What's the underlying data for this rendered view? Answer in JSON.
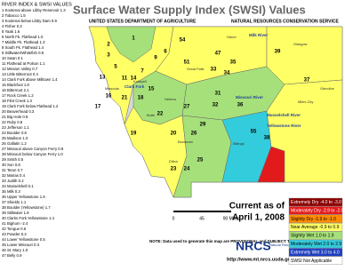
{
  "header": {
    "list_title": "RIVER INDEX & SWSI VALUES",
    "title": "Surface Water Supply Index (SWSI) Values",
    "agency_left": "UNITED STATES DEPARTMENT OF AGRICULTURE",
    "agency_right": "NATURAL RESOURCES CONSERVATION SERVICE"
  },
  "basin_list": [
    "1 Kootenai above Libby Reservoir 1.3",
    "2 Tobacco 1.5",
    "3 Kootenai below Libby Dam 0.9",
    "4 Fisher 0.3",
    "5 Yaak 1.6",
    "6 North Fk. Flathead 1.0",
    "7 Middle Fk. Flathead 1.3",
    "8 South Fk. Flathead 1.4",
    "9 Stillwater/Whitefish 0.9",
    "10 Swan 0.1",
    "11 Flathead at Polson 1.1",
    "12 Mission Valley 0.7",
    "13 Little Bitterroot 0.4",
    "14 Clark Fork above Milltown 1.4",
    "15 Blackfoot 1.8",
    "16 Bitterroot 2.1",
    "17 Rock Creek 1.2",
    "18 Flint Creek 1.3",
    "19 Clark Fork below Flathead 1.2",
    "20 Beaverhead 0.3",
    "21 Big Hole 0.8",
    "22 Ruby 0.9",
    "23 Jefferson 1.1",
    "24 Boulder 0.6",
    "25 Madison 1.0",
    "26 Gallatin 1.2",
    "27 Missouri above Canyon Ferry 0.9",
    "28 Missouri below Canyon Ferry 1.0",
    "29 Smith 0.5",
    "30 Sun 0.8",
    "31 Teton 0.7",
    "32 Marias 0.4",
    "33 Judith 0.2",
    "34 Musselshell 0.1",
    "35 Milk 0.3",
    "36 Upper Yellowstone 1.5",
    "37 Shields 1.1",
    "38 Boulder (Yellowstone) 1.7",
    "39 Stillwater 1.9",
    "40 Clarks Fork Yellowstone 1.4",
    "41 Bighorn -2.4",
    "42 Tongue 0.6",
    "43 Powder 0.2",
    "44 Lower Yellowstone 0.5",
    "45 Lower Missouri 0.3",
    "46 St. Mary 1.0",
    "47 Belly 0.9"
  ],
  "map_labels": [
    "1",
    "2",
    "3",
    "5",
    "6",
    "7",
    "9",
    "11",
    "13",
    "14",
    "15",
    "16",
    "17",
    "18",
    "19",
    "20",
    "21",
    "22",
    "23",
    "24",
    "25",
    "26",
    "27",
    "29",
    "31",
    "32",
    "33",
    "34",
    "35",
    "36",
    "37",
    "38",
    "39",
    "47",
    "51",
    "54",
    "55"
  ],
  "places": [
    "Kalispell",
    "Missoula",
    "Great Falls",
    "Helena",
    "Butte",
    "Bozeman",
    "Billings",
    "Dillon",
    "Glasgow",
    "Glendive",
    "Miles City",
    "Havre"
  ],
  "rivers": [
    "Milk River",
    "Clark Fork",
    "Missouri River",
    "Musselshell River",
    "Yellowstone River"
  ],
  "scale": {
    "ticks": [
      "0",
      "45",
      "90 Miles"
    ]
  },
  "note": "NOTE: Data used to generate this map are PROVISIONAL and SUBJECT TO CHANGE.",
  "current": {
    "line1": "Current as of",
    "line2": "April 1, 2008"
  },
  "logo": {
    "name": "NRCS",
    "tagline": "Natural Resources Conservation Service",
    "url": "http://www.mt.nrcs.usda.gov"
  },
  "legend": [
    {
      "label": "Extremely Dry -4.0 to -3.0",
      "color": "#8b0000"
    },
    {
      "label": "Moderately Dry -2.9 to -2.0",
      "color": "#e31a1c"
    },
    {
      "label": "Slightly Dry -1.9 to -1.0",
      "color": "#ff8c00"
    },
    {
      "label": "Near Average -0.9 to 0.9",
      "color": "#ffff66"
    },
    {
      "label": "Slightly Wet 1.0 to 1.9",
      "color": "#a6e07a"
    },
    {
      "label": "Moderately Wet 2.0 to 2.9",
      "color": "#33ccdd"
    },
    {
      "label": "Extremely Wet 3.0 to 4.0",
      "color": "#1f3fbf"
    },
    {
      "label": "SWSI Not Applicable",
      "color": "#ffffff"
    }
  ]
}
